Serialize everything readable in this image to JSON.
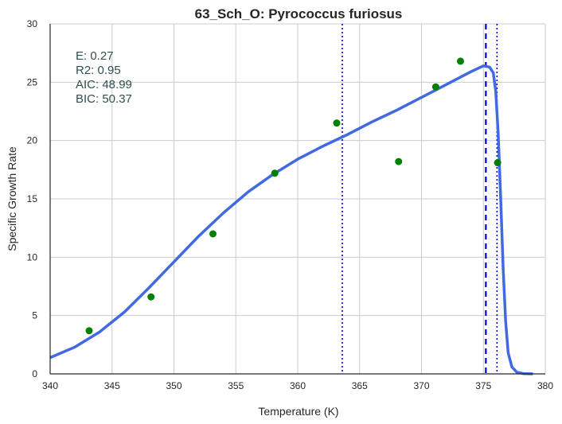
{
  "chart_data": {
    "type": "scatter",
    "title": "63_Sch_O: Pyrococcus furiosus",
    "xlabel": "Temperature (K)",
    "ylabel": "Specific Growth Rate",
    "xlim": [
      340,
      380
    ],
    "ylim": [
      0,
      30
    ],
    "xticks": [
      340,
      345,
      350,
      355,
      360,
      365,
      370,
      375,
      380
    ],
    "yticks": [
      0,
      5,
      10,
      15,
      20,
      25,
      30
    ],
    "grid": true,
    "colors": {
      "points": "#008000",
      "fit": "#4169e1",
      "vline": "#0000cd",
      "text": "#2f4f4f",
      "grid": "#cccccc"
    },
    "points": {
      "x": [
        343.15,
        348.15,
        353.15,
        358.15,
        363.15,
        368.15,
        371.15,
        373.15,
        376.15
      ],
      "y": [
        3.7,
        6.6,
        12.0,
        17.2,
        21.5,
        18.2,
        24.6,
        26.8,
        18.1
      ]
    },
    "fit": {
      "x": [
        340,
        342,
        344,
        346,
        348,
        350,
        352,
        354,
        356,
        358,
        360,
        362,
        364,
        366,
        368,
        370,
        372,
        374,
        375,
        375.5,
        375.8,
        376.0,
        376.2,
        376.4,
        376.6,
        376.8,
        377.0,
        377.3,
        377.7,
        378.2,
        379
      ],
      "y": [
        1.4,
        2.3,
        3.6,
        5.3,
        7.4,
        9.6,
        11.8,
        13.8,
        15.6,
        17.1,
        18.4,
        19.5,
        20.5,
        21.6,
        22.6,
        23.7,
        24.8,
        25.9,
        26.4,
        26.3,
        25.8,
        24.2,
        20.5,
        15.0,
        9.0,
        4.5,
        1.8,
        0.6,
        0.15,
        0.03,
        0.0
      ]
    },
    "vlines": [
      {
        "x": 363.6,
        "style": "dotted"
      },
      {
        "x": 375.2,
        "style": "dashed"
      },
      {
        "x": 376.1,
        "style": "dotted"
      }
    ],
    "stats": {
      "e": "E:  0.27",
      "r2": "R2:  0.95",
      "aic": "AIC: 48.99",
      "bic": "BIC: 50.37"
    }
  }
}
